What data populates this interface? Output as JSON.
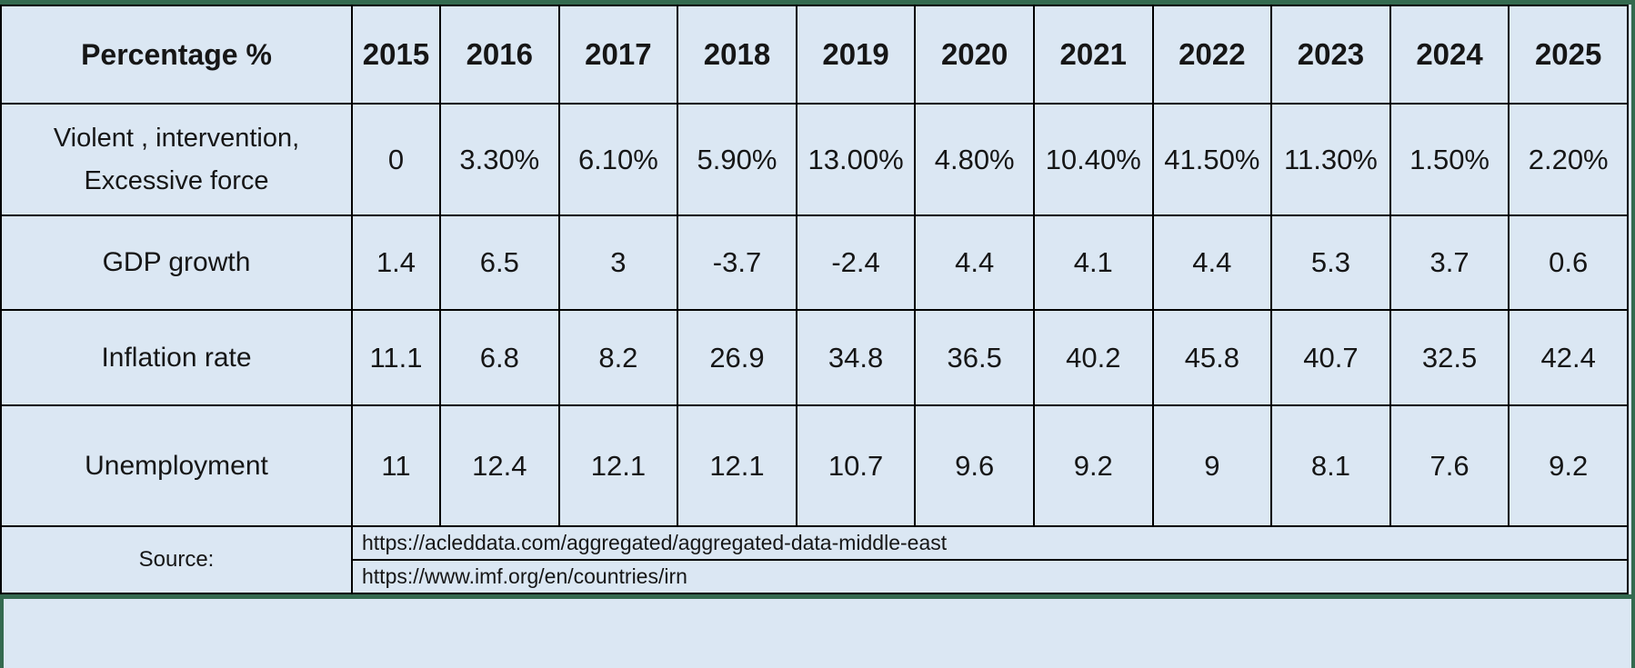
{
  "table": {
    "header": {
      "label": "Percentage %",
      "years": [
        "2015",
        "2016",
        "2017",
        "2018",
        "2019",
        "2020",
        "2021",
        "2022",
        "2023",
        "2024",
        "2025"
      ]
    },
    "rows": [
      {
        "label": "Violent , intervention, Excessive force",
        "label_lines": [
          "Violent , intervention,",
          "Excessive force"
        ],
        "values": [
          "0",
          "3.30%",
          "6.10%",
          "5.90%",
          "13.00%",
          "4.80%",
          "10.40%",
          "41.50%",
          "11.30%",
          "1.50%",
          "2.20%"
        ]
      },
      {
        "label": "GDP growth",
        "values": [
          "1.4",
          "6.5",
          "3",
          "-3.7",
          "-2.4",
          "4.4",
          "4.1",
          "4.4",
          "5.3",
          "3.7",
          "0.6"
        ]
      },
      {
        "label": "Inflation rate",
        "values": [
          "11.1",
          "6.8",
          "8.2",
          "26.9",
          "34.8",
          "36.5",
          "40.2",
          "45.8",
          "40.7",
          "32.5",
          "42.4"
        ]
      },
      {
        "label": "Unemployment",
        "values": [
          "11",
          "12.4",
          "12.1",
          "12.1",
          "10.7",
          "9.6",
          "9.2",
          "9",
          "8.1",
          "7.6",
          "9.2"
        ]
      }
    ],
    "source": {
      "label": "Source:",
      "links": [
        "https://acleddata.com/aggregated/aggregated-data-middle-east",
        "https://www.imf.org/en/countries/irn"
      ]
    }
  },
  "colors": {
    "sheet_background": "#dbe7f3",
    "cell_border": "#000000",
    "frame_green": "#346a4f",
    "text": "#161616"
  },
  "chart_data": {
    "type": "table",
    "title": "Percentage %",
    "categories": [
      "2015",
      "2016",
      "2017",
      "2018",
      "2019",
      "2020",
      "2021",
      "2022",
      "2023",
      "2024",
      "2025"
    ],
    "series": [
      {
        "name": "Violent , intervention, Excessive force",
        "values": [
          0,
          3.3,
          6.1,
          5.9,
          13.0,
          4.8,
          10.4,
          41.5,
          11.3,
          1.5,
          2.2
        ],
        "unit": "%"
      },
      {
        "name": "GDP growth",
        "values": [
          1.4,
          6.5,
          3,
          -3.7,
          -2.4,
          4.4,
          4.1,
          4.4,
          5.3,
          3.7,
          0.6
        ]
      },
      {
        "name": "Inflation rate",
        "values": [
          11.1,
          6.8,
          8.2,
          26.9,
          34.8,
          36.5,
          40.2,
          45.8,
          40.7,
          32.5,
          42.4
        ]
      },
      {
        "name": "Unemployment",
        "values": [
          11,
          12.4,
          12.1,
          12.1,
          10.7,
          9.6,
          9.2,
          9,
          8.1,
          7.6,
          9.2
        ]
      }
    ],
    "annotations": [
      "Source: https://acleddata.com/aggregated/aggregated-data-middle-east",
      "Source: https://www.imf.org/en/countries/irn"
    ]
  }
}
